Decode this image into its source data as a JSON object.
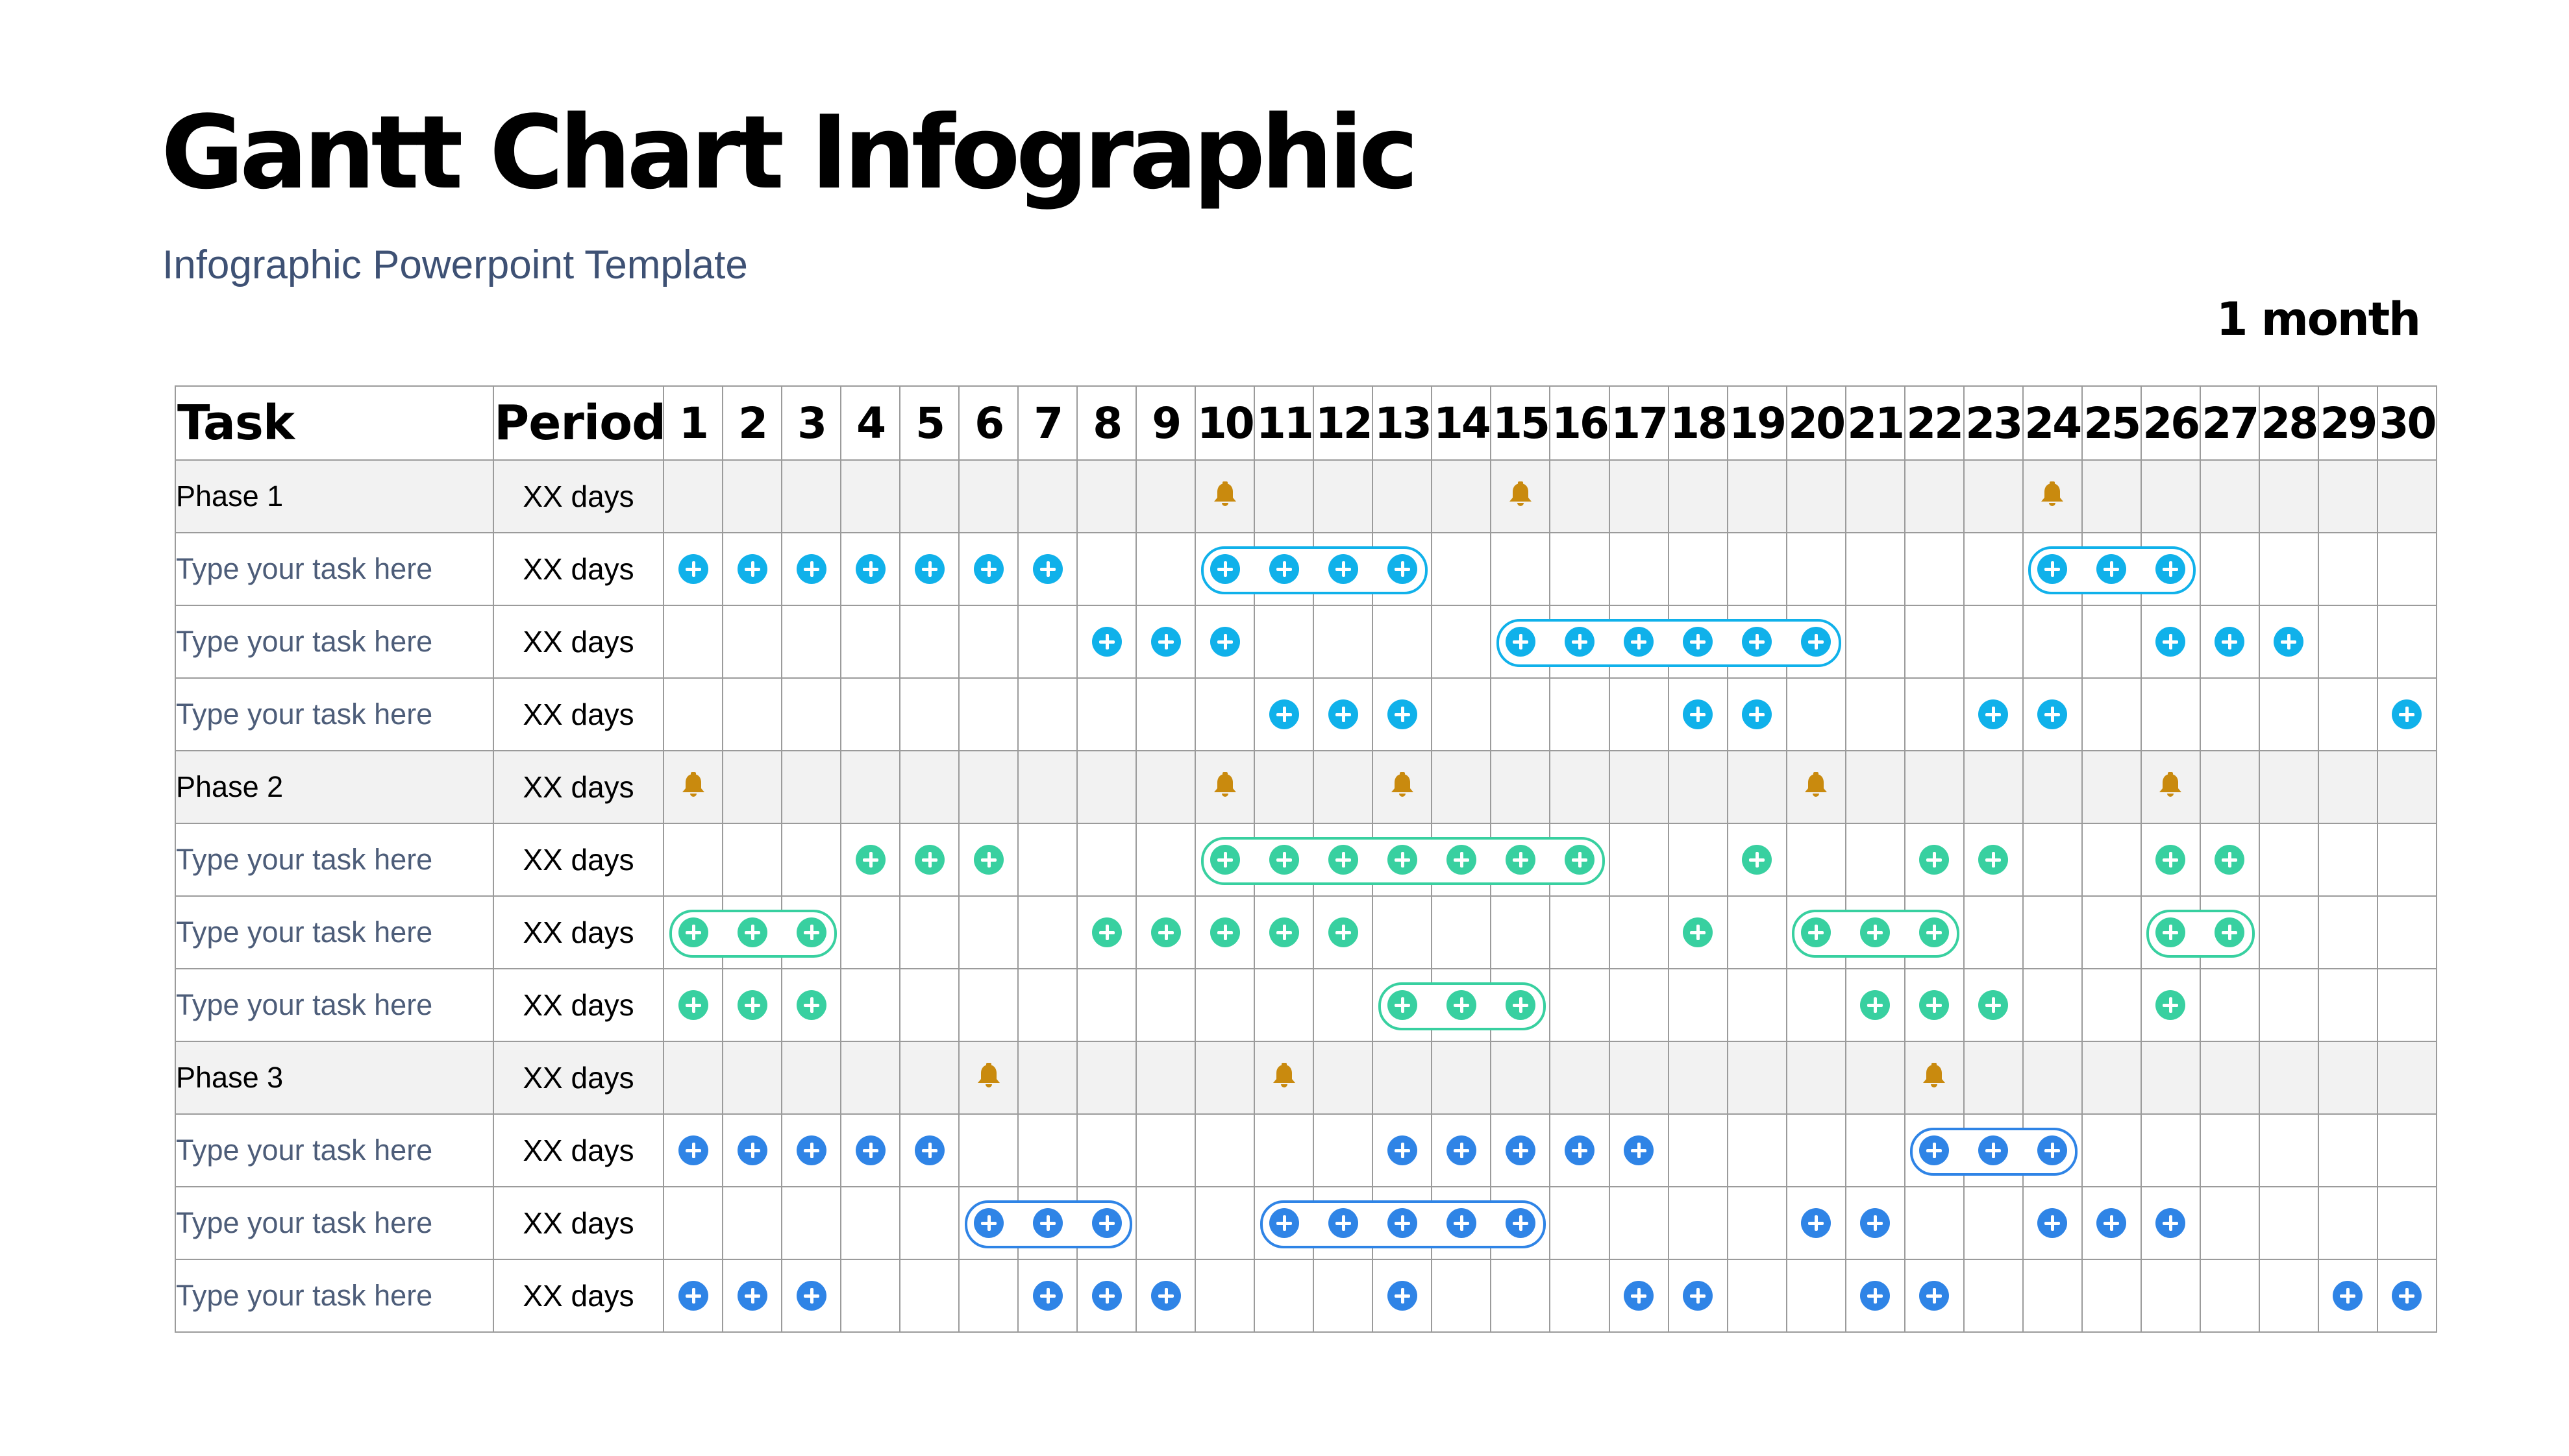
{
  "header": {
    "title": "Gantt Chart Infographic",
    "subtitle": "Infographic Powerpoint Template",
    "duration": "1 month"
  },
  "colors": {
    "cyan": "#10b1ea",
    "green": "#38d0a0",
    "blue": "#2f84e6",
    "bell": "#c98a0e",
    "phase_row_bg": "#f2f2f2"
  },
  "table": {
    "headers": {
      "task": "Task",
      "period": "Period",
      "days": [
        "1",
        "2",
        "3",
        "4",
        "5",
        "6",
        "7",
        "8",
        "9",
        "10",
        "11",
        "12",
        "13",
        "14",
        "15",
        "16",
        "17",
        "18",
        "19",
        "20",
        "21",
        "22",
        "23",
        "24",
        "25",
        "26",
        "27",
        "28",
        "29",
        "30"
      ]
    },
    "rows": [
      {
        "type": "phase",
        "label": "Phase 1",
        "period": "XX days",
        "color": "bell",
        "milestones": [
          10,
          15,
          24
        ],
        "marks": [],
        "groups": []
      },
      {
        "type": "task",
        "label": "Type your task here",
        "period": "XX days",
        "color": "cyan",
        "milestones": [],
        "marks": [
          1,
          2,
          3,
          4,
          5,
          6,
          7,
          10,
          11,
          12,
          13,
          24,
          25,
          26
        ],
        "groups": [
          [
            10,
            13
          ],
          [
            24,
            26
          ]
        ]
      },
      {
        "type": "task",
        "label": "Type your task here",
        "period": "XX days",
        "color": "cyan",
        "milestones": [],
        "marks": [
          8,
          9,
          10,
          15,
          16,
          17,
          18,
          19,
          20,
          26,
          27,
          28
        ],
        "groups": [
          [
            15,
            20
          ]
        ]
      },
      {
        "type": "task",
        "label": "Type your task here",
        "period": "XX days",
        "color": "cyan",
        "milestones": [],
        "marks": [
          11,
          12,
          13,
          18,
          19,
          23,
          24,
          30
        ],
        "groups": []
      },
      {
        "type": "phase",
        "label": "Phase 2",
        "period": "XX days",
        "color": "bell",
        "milestones": [
          1,
          10,
          13,
          20,
          26
        ],
        "marks": [],
        "groups": []
      },
      {
        "type": "task",
        "label": "Type your task here",
        "period": "XX days",
        "color": "green",
        "milestones": [],
        "marks": [
          4,
          5,
          6,
          10,
          11,
          12,
          13,
          14,
          15,
          16,
          19,
          22,
          23,
          26,
          27
        ],
        "groups": [
          [
            10,
            16
          ]
        ]
      },
      {
        "type": "task",
        "label": "Type your task here",
        "period": "XX days",
        "color": "green",
        "milestones": [],
        "marks": [
          1,
          2,
          3,
          8,
          9,
          10,
          11,
          12,
          18,
          20,
          21,
          22,
          26,
          27
        ],
        "groups": [
          [
            1,
            3
          ],
          [
            20,
            22
          ],
          [
            26,
            27
          ]
        ]
      },
      {
        "type": "task",
        "label": "Type your task here",
        "period": "XX days",
        "color": "green",
        "milestones": [],
        "marks": [
          1,
          2,
          3,
          13,
          14,
          15,
          21,
          22,
          23,
          26
        ],
        "groups": [
          [
            13,
            15
          ]
        ]
      },
      {
        "type": "phase",
        "label": "Phase 3",
        "period": "XX days",
        "color": "bell",
        "milestones": [
          6,
          11,
          22
        ],
        "marks": [],
        "groups": []
      },
      {
        "type": "task",
        "label": "Type your task here",
        "period": "XX days",
        "color": "blue",
        "milestones": [],
        "marks": [
          1,
          2,
          3,
          4,
          5,
          13,
          14,
          15,
          16,
          17,
          22,
          23,
          24
        ],
        "groups": [
          [
            22,
            24
          ]
        ]
      },
      {
        "type": "task",
        "label": "Type your task here",
        "period": "XX days",
        "color": "blue",
        "milestones": [],
        "marks": [
          6,
          7,
          8,
          11,
          12,
          13,
          14,
          15,
          20,
          21,
          24,
          25,
          26
        ],
        "groups": [
          [
            6,
            8
          ],
          [
            11,
            15
          ]
        ]
      },
      {
        "type": "task",
        "label": "Type your task here",
        "period": "XX days",
        "color": "blue",
        "milestones": [],
        "marks": [
          1,
          2,
          3,
          7,
          8,
          9,
          13,
          17,
          18,
          21,
          22,
          29,
          30
        ],
        "groups": []
      }
    ]
  }
}
